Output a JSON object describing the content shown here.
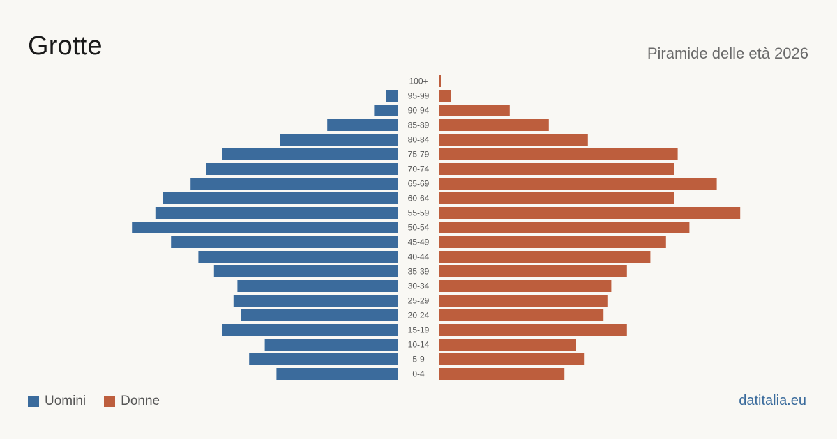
{
  "header": {
    "title": "Grotte",
    "subtitle": "Piramide delle età 2026"
  },
  "legend": {
    "men_label": "Uomini",
    "women_label": "Donne"
  },
  "colors": {
    "men": "#3b6b9c",
    "women": "#bd5e3d",
    "background": "#f9f8f4",
    "label": "#555555"
  },
  "source": "datitalia.eu",
  "chart_data": {
    "type": "bar",
    "orientation": "horizontal-population-pyramid",
    "categories": [
      "100+",
      "95-99",
      "90-94",
      "85-89",
      "80-84",
      "75-79",
      "70-74",
      "65-69",
      "60-64",
      "55-59",
      "50-54",
      "45-49",
      "40-44",
      "35-39",
      "30-34",
      "25-29",
      "20-24",
      "15-19",
      "10-14",
      "5-9",
      "0-4"
    ],
    "series": [
      {
        "name": "Uomini",
        "values": [
          0,
          3,
          6,
          18,
          30,
          45,
          49,
          53,
          60,
          62,
          68,
          58,
          51,
          47,
          41,
          42,
          40,
          45,
          34,
          38,
          31
        ]
      },
      {
        "name": "Donne",
        "values": [
          0.3,
          3,
          18,
          28,
          38,
          61,
          60,
          71,
          60,
          77,
          64,
          58,
          54,
          48,
          44,
          43,
          42,
          48,
          35,
          37,
          32
        ]
      }
    ],
    "grid": false,
    "legend_position": "bottom-left"
  }
}
